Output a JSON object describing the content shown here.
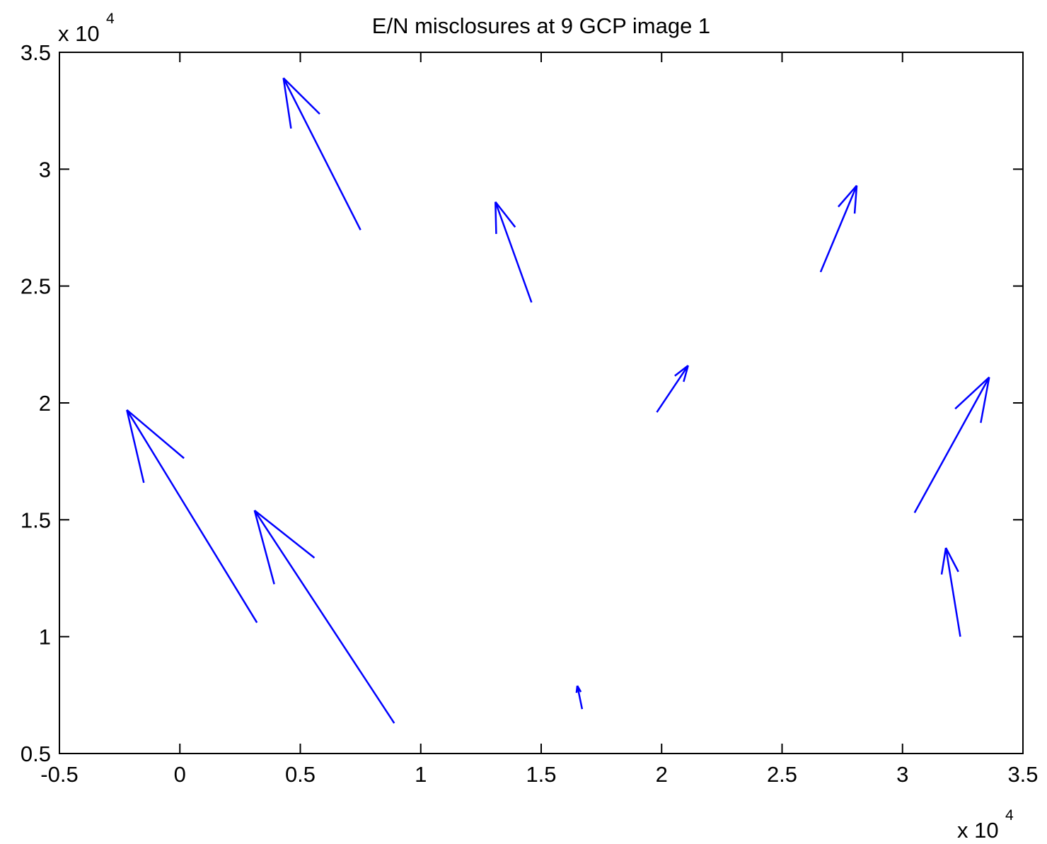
{
  "chart_data": {
    "type": "quiver",
    "title": "E/N misclosures at 9 GCP image 1",
    "xlabel": "",
    "ylabel": "",
    "xlim": [
      -5000,
      35000
    ],
    "ylim": [
      5000,
      35000
    ],
    "x_multiplier": {
      "base": "x 10",
      "exponent": "4"
    },
    "y_multiplier": {
      "base": "x 10",
      "exponent": "4"
    },
    "x_ticks": [
      -5000,
      0,
      5000,
      10000,
      15000,
      20000,
      25000,
      30000,
      35000
    ],
    "x_tick_labels": [
      "-0.5",
      "0",
      "0.5",
      "1",
      "1.5",
      "2",
      "2.5",
      "3",
      "3.5"
    ],
    "y_ticks": [
      5000,
      10000,
      15000,
      20000,
      25000,
      30000,
      35000
    ],
    "y_tick_labels": [
      "0.5",
      "1",
      "1.5",
      "2",
      "2.5",
      "3",
      "3.5"
    ],
    "grid": false,
    "arrow_color": "#0000ff",
    "arrows": [
      {
        "x": 7500,
        "y": 27400,
        "u": -3200,
        "v": 6500
      },
      {
        "x": 14600,
        "y": 24300,
        "u": -1500,
        "v": 4300
      },
      {
        "x": 26600,
        "y": 25600,
        "u": 1500,
        "v": 3700
      },
      {
        "x": 19800,
        "y": 19600,
        "u": 1300,
        "v": 2000
      },
      {
        "x": 3200,
        "y": 10600,
        "u": -5400,
        "v": 9100
      },
      {
        "x": 8900,
        "y": 6300,
        "u": -5800,
        "v": 9100
      },
      {
        "x": 16700,
        "y": 6900,
        "u": -200,
        "v": 1000
      },
      {
        "x": 30500,
        "y": 15300,
        "u": 3100,
        "v": 5800
      },
      {
        "x": 32400,
        "y": 10000,
        "u": -600,
        "v": 3800
      }
    ]
  }
}
